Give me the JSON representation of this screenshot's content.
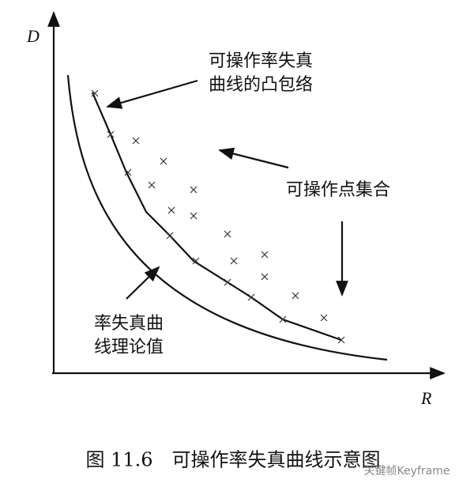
{
  "axes": {
    "y_label": "D",
    "x_label": "R"
  },
  "annotations": {
    "convex_hull": [
      "可操作率失真",
      "曲线的凸包络"
    ],
    "operating_points": "可操作点集合",
    "theoretical_curve": [
      "率失真曲",
      "线理论值"
    ]
  },
  "caption": "图 11.6　可操作率失真曲线示意图",
  "watermark": "关键帧Keyframe"
}
